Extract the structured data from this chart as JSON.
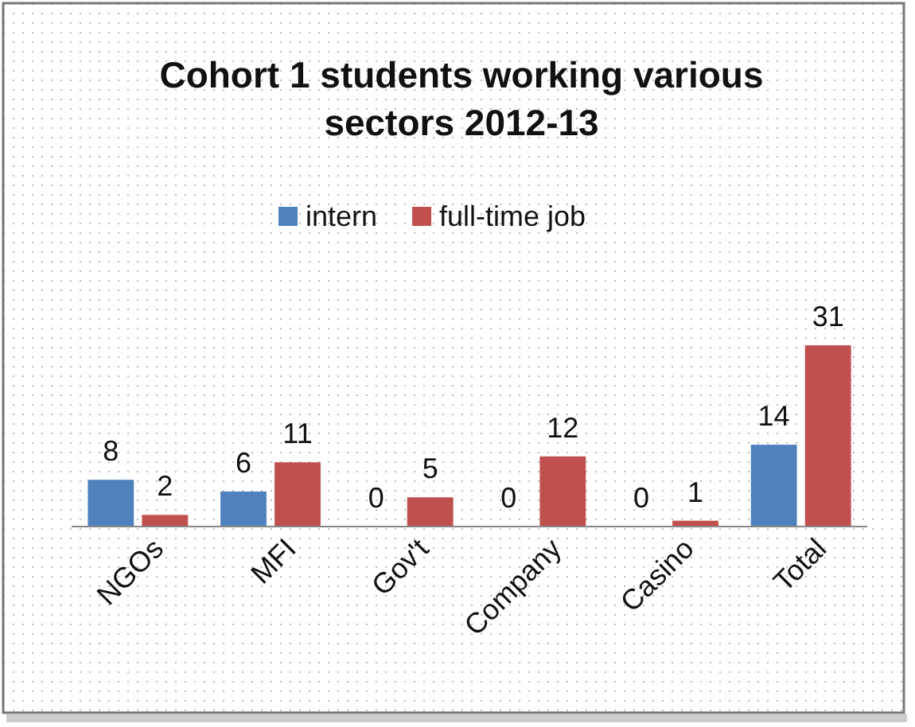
{
  "chart_data": {
    "type": "bar",
    "title": "Cohort 1 students working various sectors 2012-13",
    "categories": [
      "NGOs",
      "MFI",
      "Gov't",
      "Company",
      "Casino",
      "Total"
    ],
    "series": [
      {
        "name": "intern",
        "color": "#4f81bd",
        "values": [
          8,
          6,
          0,
          0,
          0,
          14
        ]
      },
      {
        "name": "full-time job",
        "color": "#c0504d",
        "values": [
          2,
          11,
          5,
          12,
          1,
          31
        ]
      }
    ],
    "data_labels": true,
    "legend": "top",
    "grid": false
  }
}
